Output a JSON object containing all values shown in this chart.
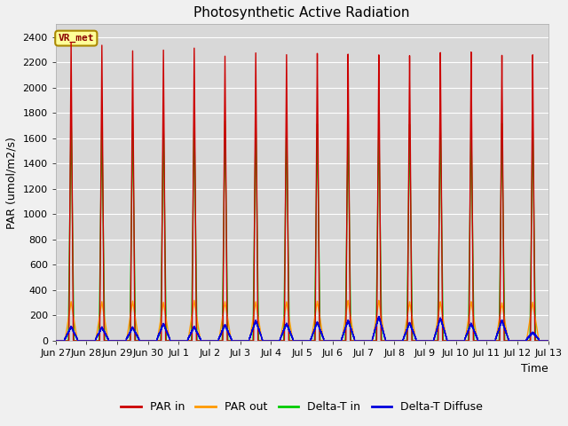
{
  "title": "Photosynthetic Active Radiation",
  "ylabel": "PAR (umol/m2/s)",
  "xlabel": "Time",
  "ylim": [
    0,
    2500
  ],
  "yticks": [
    0,
    200,
    400,
    600,
    800,
    1000,
    1200,
    1400,
    1600,
    1800,
    2000,
    2200,
    2400
  ],
  "plot_bg_color": "#d8d8d8",
  "fig_bg_color": "#f0f0f0",
  "grid_color": "#ffffff",
  "label_box": "VR_met",
  "label_box_bg": "#ffff99",
  "label_box_border": "#aa8800",
  "series": {
    "par_in_color": "#cc0000",
    "par_out_color": "#ff9900",
    "delta_t_in_color": "#00cc00",
    "delta_t_diffuse_color": "#0000dd"
  },
  "legend_labels": [
    "PAR in",
    "PAR out",
    "Delta-T in",
    "Delta-T Diffuse"
  ],
  "n_days": 16,
  "peaks": {
    "par_in": [
      2360,
      2340,
      2300,
      2310,
      2330,
      2270,
      2300,
      2290,
      2300,
      2290,
      2280,
      2270,
      2290,
      2290,
      2260,
      2260
    ],
    "par_out": [
      310,
      310,
      315,
      305,
      320,
      310,
      310,
      310,
      315,
      320,
      320,
      310,
      310,
      310,
      300,
      305
    ],
    "delta_t_in": [
      1800,
      1750,
      1750,
      1760,
      1800,
      1750,
      1770,
      1760,
      1730,
      1710,
      1730,
      1720,
      1740,
      1740,
      1720,
      1730
    ],
    "delta_t_diffuse": [
      105,
      100,
      100,
      130,
      105,
      120,
      155,
      130,
      140,
      155,
      185,
      135,
      175,
      130,
      155,
      60
    ]
  },
  "title_fontsize": 11,
  "axis_label_fontsize": 9,
  "tick_fontsize": 8,
  "legend_fontsize": 9
}
